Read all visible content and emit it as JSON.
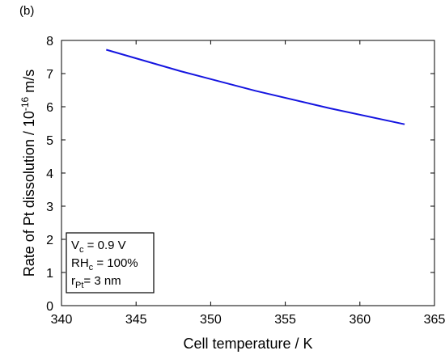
{
  "panel_label": "(b)",
  "chart_data": {
    "type": "line",
    "title": "",
    "xlabel": "Cell temperature  /  K",
    "ylabel": {
      "main": "Rate of Pt dissolution  /  10",
      "exp": "-16",
      "unit": " m/s"
    },
    "xlim": [
      340,
      365
    ],
    "ylim": [
      0,
      8
    ],
    "xticks": [
      340,
      345,
      350,
      355,
      360,
      365
    ],
    "yticks": [
      0,
      1,
      2,
      3,
      4,
      5,
      6,
      7,
      8
    ],
    "grid": false,
    "series": [
      {
        "color": "#1515e0",
        "x": [
          343,
          348,
          353,
          358,
          363
        ],
        "y": [
          7.72,
          7.07,
          6.48,
          5.95,
          5.47
        ]
      }
    ],
    "annotation": {
      "lines": [
        {
          "base": "V",
          "sub": "c",
          "rest": " = 0.9 V"
        },
        {
          "base": "RH",
          "sub": "c",
          "rest": " = 100%"
        },
        {
          "base": "r",
          "sub": "Pt",
          "rest": "= 3 nm"
        }
      ]
    }
  }
}
